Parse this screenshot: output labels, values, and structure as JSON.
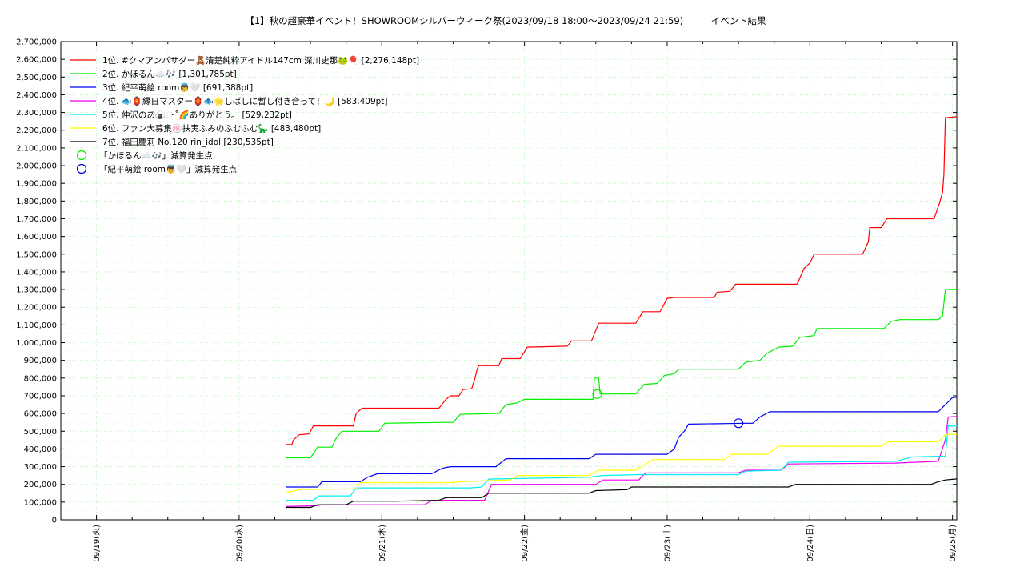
{
  "chart_data": {
    "type": "line",
    "title": "【1】秋の超豪華イベント！SHOWROOMシルバーウィーク祭(2023/09/18 18:00〜2023/09/24 21:59)　　　イベント結果",
    "xlabel": "",
    "ylabel": "",
    "ylim": [
      0,
      2700000
    ],
    "y_ticks": [
      0,
      100000,
      200000,
      300000,
      400000,
      500000,
      600000,
      700000,
      800000,
      900000,
      1000000,
      1100000,
      1200000,
      1300000,
      1400000,
      1500000,
      1600000,
      1700000,
      1800000,
      1900000,
      2000000,
      2100000,
      2200000,
      2300000,
      2400000,
      2500000,
      2600000,
      2700000
    ],
    "y_tick_labels": [
      "0",
      "100,000",
      "200,000",
      "300,000",
      "400,000",
      "500,000",
      "600,000",
      "700,000",
      "800,000",
      "900,000",
      "1,000,000",
      "1,100,000",
      "1,200,000",
      "1,300,000",
      "1,400,000",
      "1,500,000",
      "1,600,000",
      "1,700,000",
      "1,800,000",
      "1,900,000",
      "2,000,000",
      "2,100,000",
      "2,200,000",
      "2,300,000",
      "2,400,000",
      "2,500,000",
      "2,600,000",
      "2,700,000"
    ],
    "x_unit": "days from 09/19 00:00",
    "xlim": [
      -0.25,
      6.03
    ],
    "x_ticks": [
      0,
      1,
      2,
      3,
      4,
      5,
      6
    ],
    "x_tick_labels": [
      "09/19(火)",
      "09/20(水)",
      "09/21(木)",
      "09/22(金)",
      "09/23(土)",
      "09/24(日)",
      "09/25(月)"
    ],
    "grid": true,
    "legend": "top-left",
    "series": [
      {
        "name": "1位. #クマアンバサダー🧸清楚純粋アイドル147cm 深川史那🐸🎈 [2,276,148pt]",
        "color": "#ff0000",
        "points": [
          [
            1.33,
            425000
          ],
          [
            1.37,
            425000
          ],
          [
            1.38,
            450000
          ],
          [
            1.42,
            480000
          ],
          [
            1.49,
            485000
          ],
          [
            1.52,
            530000
          ],
          [
            1.8,
            530000
          ],
          [
            1.82,
            600000
          ],
          [
            1.86,
            630000
          ],
          [
            2.4,
            630000
          ],
          [
            2.45,
            680000
          ],
          [
            2.48,
            700000
          ],
          [
            2.54,
            700000
          ],
          [
            2.57,
            735000
          ],
          [
            2.63,
            740000
          ],
          [
            2.65,
            790000
          ],
          [
            2.67,
            855000
          ],
          [
            2.68,
            870000
          ],
          [
            2.82,
            870000
          ],
          [
            2.84,
            910000
          ],
          [
            2.97,
            910000
          ],
          [
            3.02,
            975000
          ],
          [
            3.3,
            980000
          ],
          [
            3.33,
            1010000
          ],
          [
            3.47,
            1010000
          ],
          [
            3.52,
            1110000
          ],
          [
            3.78,
            1110000
          ],
          [
            3.83,
            1175000
          ],
          [
            3.95,
            1175000
          ],
          [
            4.0,
            1250000
          ],
          [
            4.05,
            1255000
          ],
          [
            4.33,
            1255000
          ],
          [
            4.35,
            1285000
          ],
          [
            4.44,
            1290000
          ],
          [
            4.48,
            1330000
          ],
          [
            4.91,
            1330000
          ],
          [
            4.96,
            1420000
          ],
          [
            5.0,
            1450000
          ],
          [
            5.03,
            1500000
          ],
          [
            5.37,
            1500000
          ],
          [
            5.41,
            1570000
          ],
          [
            5.42,
            1650000
          ],
          [
            5.5,
            1650000
          ],
          [
            5.54,
            1700000
          ],
          [
            5.87,
            1700000
          ],
          [
            5.91,
            1790000
          ],
          [
            5.93,
            1850000
          ],
          [
            5.94,
            1950000
          ],
          [
            5.95,
            2270000
          ],
          [
            6.03,
            2276000
          ]
        ]
      },
      {
        "name": "2位. かほるん☁️🎶 [1,301,785pt]",
        "color": "#00ee00",
        "points": [
          [
            1.33,
            350000
          ],
          [
            1.5,
            350000
          ],
          [
            1.55,
            410000
          ],
          [
            1.65,
            410000
          ],
          [
            1.68,
            460000
          ],
          [
            1.72,
            500000
          ],
          [
            1.98,
            500000
          ],
          [
            2.02,
            545000
          ],
          [
            2.45,
            550000
          ],
          [
            2.5,
            550000
          ],
          [
            2.55,
            595000
          ],
          [
            2.78,
            600000
          ],
          [
            2.82,
            600000
          ],
          [
            2.87,
            650000
          ],
          [
            2.95,
            660000
          ],
          [
            3.0,
            680000
          ],
          [
            3.15,
            680000
          ],
          [
            3.48,
            680000
          ],
          [
            3.49,
            800000
          ],
          [
            3.52,
            800000
          ],
          [
            3.53,
            710000
          ],
          [
            3.78,
            710000
          ],
          [
            3.84,
            765000
          ],
          [
            3.93,
            770000
          ],
          [
            3.98,
            815000
          ],
          [
            4.05,
            825000
          ],
          [
            4.08,
            850000
          ],
          [
            4.5,
            850000
          ],
          [
            4.55,
            890000
          ],
          [
            4.65,
            900000
          ],
          [
            4.7,
            940000
          ],
          [
            4.78,
            975000
          ],
          [
            4.88,
            980000
          ],
          [
            4.93,
            1030000
          ],
          [
            5.03,
            1040000
          ],
          [
            5.05,
            1080000
          ],
          [
            5.52,
            1080000
          ],
          [
            5.57,
            1120000
          ],
          [
            5.63,
            1130000
          ],
          [
            5.9,
            1130000
          ],
          [
            5.93,
            1150000
          ],
          [
            5.95,
            1300000
          ],
          [
            6.03,
            1301785
          ]
        ]
      },
      {
        "name": "3位. 紀平萌絵 room👼🤍 [691,388pt]",
        "color": "#0000ee",
        "points": [
          [
            1.33,
            185000
          ],
          [
            1.55,
            185000
          ],
          [
            1.58,
            215000
          ],
          [
            1.85,
            215000
          ],
          [
            1.9,
            240000
          ],
          [
            1.97,
            260000
          ],
          [
            2.35,
            260000
          ],
          [
            2.42,
            290000
          ],
          [
            2.48,
            300000
          ],
          [
            2.8,
            300000
          ],
          [
            2.87,
            345000
          ],
          [
            3.45,
            345000
          ],
          [
            3.5,
            370000
          ],
          [
            4.0,
            370000
          ],
          [
            4.05,
            400000
          ],
          [
            4.08,
            465000
          ],
          [
            4.12,
            500000
          ],
          [
            4.15,
            540000
          ],
          [
            4.55,
            545000
          ],
          [
            4.6,
            545000
          ],
          [
            4.65,
            580000
          ],
          [
            4.72,
            610000
          ],
          [
            5.75,
            610000
          ],
          [
            5.9,
            610000
          ],
          [
            5.95,
            650000
          ],
          [
            6.0,
            690000
          ],
          [
            6.03,
            691388
          ]
        ]
      },
      {
        "name": "4位. 🐟🏮縁日マスター🏮🐟🌟しばしに暫し付き合って！🌙 [583,409pt]",
        "color": "#ee00ee",
        "points": [
          [
            1.33,
            75000
          ],
          [
            1.55,
            80000
          ],
          [
            1.58,
            85000
          ],
          [
            2.3,
            85000
          ],
          [
            2.35,
            110000
          ],
          [
            2.72,
            110000
          ],
          [
            2.77,
            200000
          ],
          [
            3.25,
            200000
          ],
          [
            3.5,
            200000
          ],
          [
            3.55,
            225000
          ],
          [
            3.8,
            225000
          ],
          [
            3.85,
            265000
          ],
          [
            4.5,
            265000
          ],
          [
            4.55,
            280000
          ],
          [
            4.8,
            280000
          ],
          [
            4.85,
            315000
          ],
          [
            5.6,
            320000
          ],
          [
            5.9,
            330000
          ],
          [
            5.95,
            450000
          ],
          [
            5.97,
            580000
          ],
          [
            6.03,
            583409
          ]
        ]
      },
      {
        "name": "5位. 仲沢のあ🍙𓈒 ･˚🌈ありがとう。 [529,232pt]",
        "color": "#00eeee",
        "points": [
          [
            1.33,
            110000
          ],
          [
            1.52,
            110000
          ],
          [
            1.56,
            135000
          ],
          [
            1.78,
            135000
          ],
          [
            1.82,
            180000
          ],
          [
            1.85,
            180000
          ],
          [
            2.62,
            180000
          ],
          [
            2.7,
            185000
          ],
          [
            2.75,
            230000
          ],
          [
            3.45,
            240000
          ],
          [
            3.55,
            250000
          ],
          [
            3.8,
            255000
          ],
          [
            4.5,
            255000
          ],
          [
            4.55,
            275000
          ],
          [
            4.8,
            280000
          ],
          [
            4.85,
            325000
          ],
          [
            5.6,
            330000
          ],
          [
            5.72,
            355000
          ],
          [
            5.95,
            360000
          ],
          [
            5.97,
            530000
          ],
          [
            6.03,
            529232
          ]
        ]
      },
      {
        "name": "6位. ファン大募集🍥扶実ふみのふむふむ🦕 [483,480pt]",
        "color": "#ffff00",
        "points": [
          [
            1.33,
            155000
          ],
          [
            1.37,
            160000
          ],
          [
            1.42,
            170000
          ],
          [
            1.82,
            175000
          ],
          [
            1.85,
            210000
          ],
          [
            2.5,
            210000
          ],
          [
            2.55,
            215000
          ],
          [
            2.9,
            225000
          ],
          [
            2.95,
            250000
          ],
          [
            3.45,
            250000
          ],
          [
            3.52,
            280000
          ],
          [
            3.78,
            280000
          ],
          [
            3.83,
            305000
          ],
          [
            3.9,
            340000
          ],
          [
            4.4,
            340000
          ],
          [
            4.45,
            370000
          ],
          [
            4.7,
            370000
          ],
          [
            4.78,
            415000
          ],
          [
            5.5,
            415000
          ],
          [
            5.55,
            440000
          ],
          [
            5.9,
            440000
          ],
          [
            5.95,
            480000
          ],
          [
            6.03,
            483480
          ]
        ]
      },
      {
        "name": "7位. 福田慶莉 No.120 rin_idol [230,535pt]",
        "color": "#000000",
        "points": [
          [
            1.33,
            70000
          ],
          [
            1.5,
            70000
          ],
          [
            1.55,
            85000
          ],
          [
            1.75,
            85000
          ],
          [
            1.8,
            105000
          ],
          [
            2.1,
            105000
          ],
          [
            2.4,
            110000
          ],
          [
            2.45,
            125000
          ],
          [
            2.7,
            125000
          ],
          [
            2.75,
            150000
          ],
          [
            3.45,
            150000
          ],
          [
            3.5,
            165000
          ],
          [
            3.72,
            170000
          ],
          [
            3.75,
            185000
          ],
          [
            4.2,
            185000
          ],
          [
            4.5,
            185000
          ],
          [
            4.85,
            185000
          ],
          [
            4.9,
            200000
          ],
          [
            5.72,
            200000
          ],
          [
            5.85,
            200000
          ],
          [
            5.9,
            215000
          ],
          [
            5.95,
            225000
          ],
          [
            6.03,
            230535
          ]
        ]
      }
    ],
    "markers": [
      {
        "name": "「かほるん☁️🎶」減算発生点",
        "color": "#00ee00",
        "x": 3.51,
        "y": 710000
      },
      {
        "name": "「紀平萌絵 room👼🤍」減算発生点",
        "color": "#0000ee",
        "x": 4.5,
        "y": 545000
      }
    ]
  }
}
